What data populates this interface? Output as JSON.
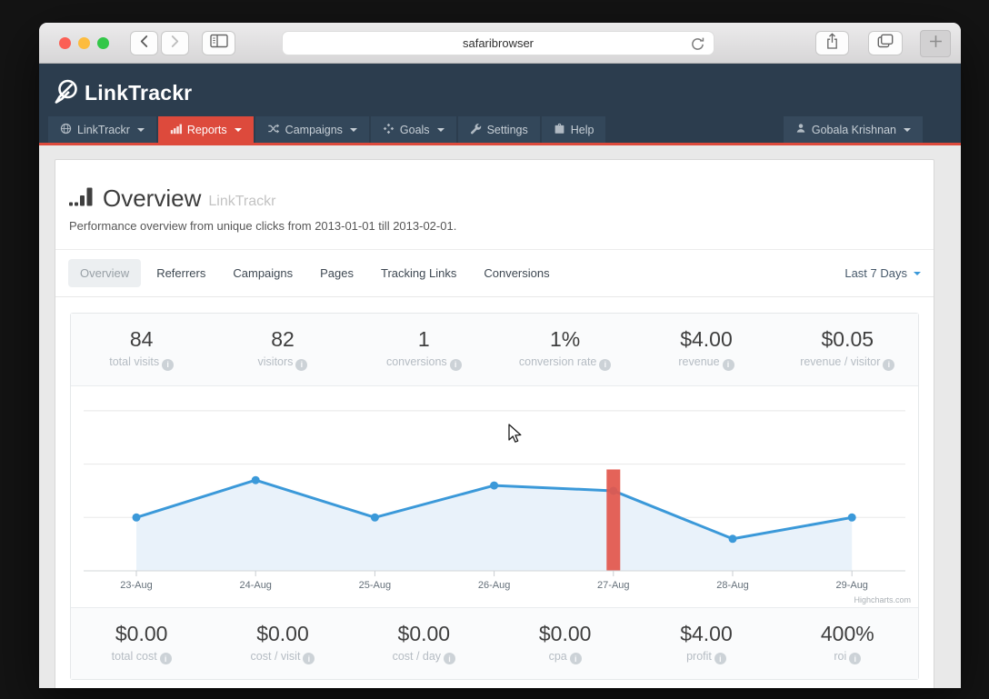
{
  "browser": {
    "url_text": "safaribrowser"
  },
  "header": {
    "logo_text": "LinkTrackr",
    "nav_items": [
      {
        "label": "LinkTrackr"
      },
      {
        "label": "Reports"
      },
      {
        "label": "Campaigns"
      },
      {
        "label": "Goals"
      },
      {
        "label": "Settings"
      },
      {
        "label": "Help"
      }
    ],
    "user_label": "Gobala Krishnan"
  },
  "page": {
    "title": "Overview",
    "title_suffix": "LinkTrackr",
    "subtitle": "Performance overview from unique clicks from 2013-01-01 till 2013-02-01.",
    "tabs": [
      {
        "label": "Overview"
      },
      {
        "label": "Referrers"
      },
      {
        "label": "Campaigns"
      },
      {
        "label": "Pages"
      },
      {
        "label": "Tracking Links"
      },
      {
        "label": "Conversions"
      }
    ],
    "date_range_label": "Last 7 Days"
  },
  "stats_top": [
    {
      "value": "84",
      "label": "total visits"
    },
    {
      "value": "82",
      "label": "visitors"
    },
    {
      "value": "1",
      "label": "conversions"
    },
    {
      "value": "1%",
      "label": "conversion rate"
    },
    {
      "value": "$4.00",
      "label": "revenue"
    },
    {
      "value": "$0.05",
      "label": "revenue / visitor"
    }
  ],
  "stats_bottom": [
    {
      "value": "$0.00",
      "label": "total cost"
    },
    {
      "value": "$0.00",
      "label": "cost / visit"
    },
    {
      "value": "$0.00",
      "label": "cost / day"
    },
    {
      "value": "$0.00",
      "label": "cpa"
    },
    {
      "value": "$4.00",
      "label": "profit"
    },
    {
      "value": "400%",
      "label": "roi"
    }
  ],
  "chart_data": {
    "type": "area",
    "title": "",
    "categories": [
      "23-Aug",
      "24-Aug",
      "25-Aug",
      "26-Aug",
      "27-Aug",
      "28-Aug",
      "29-Aug"
    ],
    "series": [
      {
        "name": "visits",
        "type": "line-area",
        "color": "#3b99d9",
        "fill": "#e9f2fa",
        "values": [
          10,
          17,
          10,
          16,
          15,
          6,
          10
        ]
      },
      {
        "name": "highlight-column",
        "type": "column",
        "color": "#e2574c",
        "category": "27-Aug",
        "category_index": 4,
        "top_value": 19
      }
    ],
    "ylim": [
      0,
      32.5
    ],
    "gridlines": [
      10,
      20,
      30
    ],
    "grid_color": "#e8e8e8",
    "axis_color": "#d3d7da",
    "tick_color": "#c9cdd1",
    "label_color": "#65707a",
    "legend": "none",
    "credit": "Highcharts.com"
  },
  "icons": {
    "info_glyph": "i"
  },
  "colors": {
    "accent_red": "#dd4a3c",
    "navy": "#2c3d4e",
    "link_blue": "#3b99d9"
  }
}
